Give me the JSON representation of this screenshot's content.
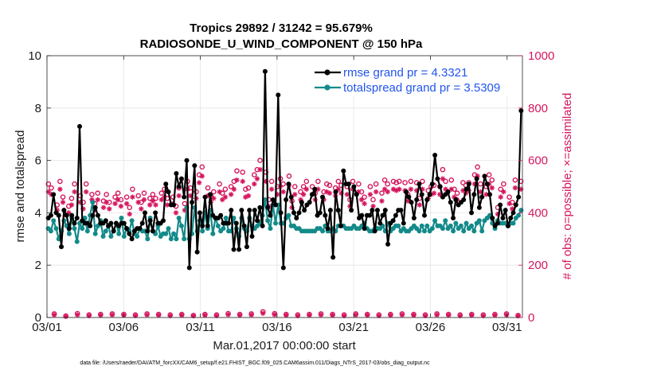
{
  "chart_data": {
    "type": "line",
    "title_line1": "Tropics 29892 / 31242 = 95.679%",
    "title_line2": "RADIOSONDE_U_WIND_COMPONENT @ 150 hPa",
    "xlabel": "Mar.01,2017 00:00:00 start",
    "ylabel_left": "rmse and totalspread",
    "ylabel_right": "# of obs: o=possible; ×=assimilated",
    "footnote": "data file: /Users/raeder/DAI/ATM_forcXX/CAM6_setup/f.e21.FHIST_BGC.f09_025.CAM6assim.011/Diags_NTrS_2017-03/obs_diag_output.nc",
    "xlim": [
      1,
      32
    ],
    "ylim_left": [
      0,
      10
    ],
    "ylim_right": [
      0,
      1000
    ],
    "x_ticks": [
      1,
      6,
      11,
      16,
      21,
      26,
      31
    ],
    "x_tick_labels": [
      "03/01",
      "03/06",
      "03/11",
      "03/16",
      "03/21",
      "03/26",
      "03/31"
    ],
    "y_ticks_left": [
      0,
      2,
      4,
      6,
      8,
      10
    ],
    "y_tick_labels_left": [
      "0",
      "2",
      "4",
      "6",
      "8",
      "10"
    ],
    "y_ticks_right": [
      0,
      200,
      400,
      600,
      800,
      1000
    ],
    "y_tick_labels_right": [
      "0",
      "200",
      "400",
      "600",
      "800",
      "1000"
    ],
    "series": [
      {
        "name": "rmse",
        "legend": "rmse grand pr = 4.3321",
        "color": "#000000",
        "axis": "left",
        "values": [
          3.8,
          3.9,
          4.7,
          4.0,
          3.9,
          2.7,
          4.1,
          3.9,
          3.4,
          3.9,
          3.6,
          3.8,
          7.3,
          3.7,
          3.6,
          3.6,
          3.5,
          3.9,
          4.2,
          3.9,
          3.6,
          3.6,
          3.7,
          3.5,
          3.6,
          3.3,
          3.6,
          3.5,
          3.6,
          3.6,
          3.4,
          3.2,
          3.0,
          3.3,
          3.4,
          3.4,
          3.6,
          4.0,
          3.3,
          3.7,
          3.3,
          4.0,
          3.6,
          3.6,
          3.7,
          5.1,
          4.8,
          4.3,
          4.3,
          5.5,
          5.0,
          5.3,
          4.6,
          6.0,
          1.9,
          4.4,
          5.8,
          2.5,
          4.0,
          3.5,
          4.6,
          3.5,
          4.7,
          3.9,
          3.8,
          3.8,
          3.9,
          3.6,
          3.6,
          3.6,
          4.1,
          2.6,
          3.6,
          2.6,
          4.1,
          3.5,
          2.7,
          4.1,
          3.1,
          4.1,
          3.7,
          4.2,
          3.5,
          9.4,
          4.2,
          3.9,
          4.5,
          4.3,
          8.5,
          4.0,
          1.9,
          4.5,
          5.1,
          4.6,
          4.0,
          3.8,
          4.0,
          4.4,
          4.1,
          4.3,
          4.4,
          4.7,
          4.9,
          3.9,
          4.0,
          4.6,
          3.9,
          3.4,
          4.1,
          2.3,
          4.8,
          4.1,
          3.5,
          5.6,
          5.1,
          5.1,
          4.1,
          5.0,
          4.7,
          3.8,
          3.9,
          3.4,
          3.9,
          3.9,
          4.1,
          3.3,
          4.1,
          3.6,
          3.9,
          4.1,
          2.8,
          3.6,
          3.7,
          3.9,
          4.1,
          4.1,
          3.6,
          4.8,
          4.6,
          4.4,
          3.8,
          4.5,
          5.1,
          4.7,
          3.9,
          4.5,
          4.7,
          5.1,
          6.2,
          5.3,
          5.0,
          4.6,
          4.7,
          4.8,
          4.4,
          3.8,
          4.5,
          4.3,
          4.4,
          4.5,
          4.9,
          5.1,
          4.0,
          4.7,
          5.3,
          4.2,
          4.6,
          5.4,
          5.1,
          4.7,
          3.8,
          3.5,
          3.6,
          4.3,
          3.8,
          4.1,
          3.5,
          3.8,
          4.0,
          4.3,
          4.6,
          7.9
        ]
      },
      {
        "name": "totalspread",
        "legend": "totalspread grand pr = 3.5309",
        "color": "#138a8a",
        "axis": "left",
        "values": [
          3.4,
          3.3,
          3.7,
          3.4,
          3.0,
          3.3,
          3.7,
          3.5,
          3.2,
          3.8,
          3.4,
          2.9,
          3.6,
          3.4,
          3.8,
          3.3,
          3.9,
          4.4,
          3.2,
          3.5,
          3.7,
          3.1,
          3.3,
          3.5,
          3.1,
          3.3,
          3.6,
          3.2,
          3.8,
          3.1,
          3.4,
          3.3,
          3.7,
          3.2,
          3.1,
          3.4,
          3.3,
          3.3,
          3.0,
          3.8,
          3.3,
          3.2,
          3.5,
          3.1,
          3.2,
          3.2,
          3.4,
          3.0,
          3.2,
          3.0,
          3.8,
          3.5,
          3.0,
          4.2,
          3.0,
          3.2,
          4.2,
          3.3,
          3.7,
          3.3,
          4.0,
          3.4,
          4.1,
          3.2,
          3.8,
          3.5,
          3.3,
          3.4,
          3.8,
          3.3,
          3.3,
          3.8,
          3.4,
          3.1,
          3.8,
          3.4,
          3.3,
          3.8,
          3.5,
          3.4,
          3.5,
          3.6,
          3.9,
          4.5,
          3.7,
          3.4,
          4.3,
          3.6,
          4.3,
          3.6,
          3.6,
          3.8,
          3.9,
          3.5,
          3.5,
          3.4,
          3.4,
          3.3,
          3.3,
          3.3,
          3.3,
          3.3,
          3.3,
          3.4,
          3.4,
          3.3,
          3.5,
          3.3,
          3.3,
          3.4,
          3.3,
          3.5,
          3.5,
          3.5,
          3.4,
          3.4,
          3.4,
          3.5,
          3.4,
          3.4,
          3.5,
          3.6,
          3.4,
          3.3,
          3.3,
          3.4,
          3.4,
          3.4,
          3.5,
          3.3,
          3.6,
          3.3,
          3.4,
          3.5,
          3.5,
          3.3,
          3.4,
          3.3,
          3.3,
          3.4,
          3.5,
          3.4,
          3.3,
          3.5,
          3.3,
          3.5,
          3.3,
          3.4,
          3.7,
          3.5,
          3.5,
          3.4,
          3.7,
          3.4,
          3.5,
          3.3,
          3.6,
          3.4,
          3.5,
          3.3,
          3.6,
          3.4,
          3.5,
          3.3,
          3.6,
          3.7,
          3.3,
          3.7,
          3.8,
          3.9,
          3.6,
          3.4,
          3.7,
          3.6,
          3.6,
          3.6,
          3.5,
          3.6,
          3.6,
          3.8,
          3.9,
          4.1
        ]
      },
      {
        "name": "possible obs",
        "marker": "circle",
        "color": "#d4165e",
        "axis": "right",
        "values": [
          510,
          495,
          14,
          430,
          520,
          460,
          6,
          425,
          455,
          510,
          15,
          465,
          440,
          510,
          10,
          470,
          435,
          475,
          12,
          445,
          470,
          440,
          14,
          460,
          475,
          450,
          12,
          460,
          420,
          490,
          10,
          465,
          440,
          475,
          14,
          455,
          470,
          455,
          12,
          475,
          490,
          455,
          10,
          460,
          425,
          495,
          12,
          435,
          520,
          495,
          8,
          480,
          545,
          575,
          12,
          495,
          465,
          480,
          10,
          510,
          475,
          490,
          15,
          500,
          520,
          560,
          12,
          555,
          490,
          495,
          14,
          545,
          565,
          600,
          22,
          555,
          450,
          520,
          15,
          500,
          530,
          510,
          12,
          540,
          445,
          500,
          10,
          480,
          500,
          520,
          12,
          500,
          475,
          520,
          14,
          480,
          510,
          505,
          12,
          495,
          520,
          505,
          10,
          500,
          450,
          520,
          14,
          510,
          480,
          460,
          12,
          500,
          450,
          510,
          10,
          475,
          525,
          510,
          12,
          520,
          515,
          520,
          14,
          515,
          470,
          520,
          12,
          515,
          455,
          520,
          10,
          485,
          500,
          505,
          14,
          500,
          565,
          520,
          12,
          525,
          490,
          475,
          10,
          515,
          505,
          515,
          12,
          545,
          575,
          510,
          10,
          500,
          545,
          525,
          12,
          420,
          490,
          510,
          14,
          460,
          440,
          525,
          8,
          520
        ]
      },
      {
        "name": "assimilated obs",
        "marker": "asterisk",
        "color": "#d4165e",
        "axis": "right",
        "values": [
          480,
          470,
          10,
          410,
          490,
          440,
          4,
          400,
          430,
          480,
          10,
          440,
          415,
          480,
          7,
          450,
          410,
          450,
          9,
          420,
          440,
          415,
          10,
          435,
          450,
          425,
          9,
          435,
          395,
          460,
          7,
          440,
          415,
          450,
          10,
          430,
          445,
          430,
          9,
          450,
          460,
          430,
          7,
          435,
          400,
          465,
          9,
          410,
          490,
          465,
          6,
          455,
          515,
          540,
          9,
          465,
          440,
          455,
          7,
          480,
          450,
          460,
          11,
          470,
          490,
          525,
          9,
          520,
          460,
          465,
          10,
          510,
          530,
          565,
          16,
          520,
          425,
          490,
          11,
          470,
          500,
          480,
          9,
          505,
          420,
          470,
          7,
          450,
          470,
          490,
          9,
          470,
          450,
          490,
          10,
          450,
          480,
          475,
          9,
          465,
          490,
          475,
          7,
          470,
          425,
          490,
          10,
          480,
          450,
          435,
          9,
          470,
          425,
          480,
          7,
          445,
          490,
          480,
          9,
          490,
          485,
          490,
          10,
          485,
          445,
          490,
          9,
          485,
          430,
          490,
          7,
          455,
          470,
          475,
          10,
          470,
          530,
          490,
          9,
          490,
          460,
          450,
          7,
          485,
          475,
          485,
          9,
          510,
          540,
          480,
          7,
          470,
          510,
          495,
          9,
          395,
          460,
          480,
          10,
          435,
          415,
          495,
          6,
          490
        ]
      }
    ]
  }
}
